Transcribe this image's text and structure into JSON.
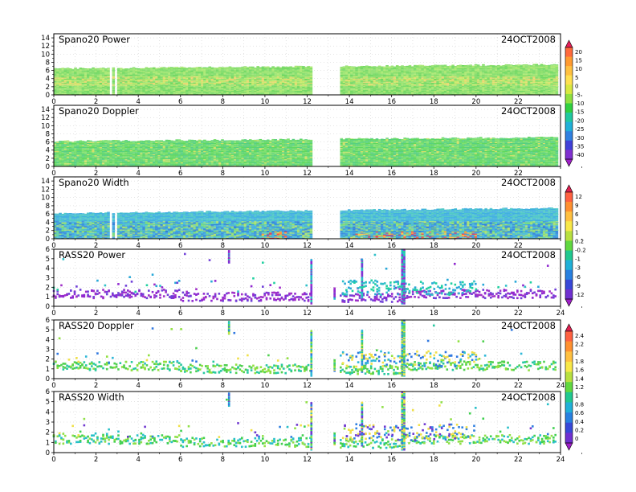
{
  "date_label": "24OCT2008",
  "x_ticks": [
    0,
    2,
    4,
    6,
    8,
    10,
    12,
    14,
    16,
    18,
    20,
    22,
    24
  ],
  "x_tick_labels": [
    "0",
    "2",
    "4",
    "6",
    "8",
    "10",
    "12",
    "14",
    "16",
    "18",
    "20",
    "22",
    "24"
  ],
  "colorbars": [
    {
      "ticks": [
        "20",
        "15",
        "10",
        "5",
        "0",
        "-5",
        "-10",
        "-15",
        "-20",
        "-25",
        "-30",
        "-35",
        "-40"
      ]
    },
    {
      "ticks": [
        "12",
        "9",
        "6",
        "3",
        "1",
        "0.2",
        "-0.2",
        "-1",
        "-3",
        "-6",
        "-9",
        "-12"
      ]
    },
    {
      "ticks": [
        "2.4",
        "2.2",
        "2",
        "1.8",
        "1.6",
        "1.4",
        "1.2",
        "1",
        "0.8",
        "0.6",
        "0.4",
        "0.2",
        "0"
      ]
    }
  ],
  "chart_data": [
    {
      "type": "heatmap",
      "title": "Spano20 Power",
      "xlim": [
        0,
        24
      ],
      "ylim": [
        0,
        15
      ],
      "y_tick_labels": [
        "0",
        "2",
        "4",
        "6",
        "8",
        "10",
        "12",
        "14"
      ],
      "y_ticks_minor": [
        1,
        3,
        5,
        7,
        9,
        11,
        13
      ],
      "gap": [
        12.2,
        13.5
      ],
      "top_left": 6.5,
      "top_right": 7.5,
      "colorbar": 0
    },
    {
      "type": "heatmap",
      "title": "Spano20 Doppler",
      "xlim": [
        0,
        24
      ],
      "ylim": [
        0,
        15
      ],
      "y_tick_labels": [
        "0",
        "2",
        "4",
        "6",
        "8",
        "10",
        "12",
        "14"
      ],
      "y_ticks_minor": [
        1,
        3,
        5,
        7,
        9,
        11,
        13
      ],
      "gap": [
        12.2,
        13.5
      ],
      "top_left": 6.2,
      "top_right": 7.2,
      "colorbar": 0
    },
    {
      "type": "heatmap",
      "title": "Spano20 Width",
      "xlim": [
        0,
        24
      ],
      "ylim": [
        0,
        15
      ],
      "y_tick_labels": [
        "0",
        "2",
        "4",
        "6",
        "8",
        "10",
        "12",
        "14"
      ],
      "y_ticks_minor": [
        1,
        3,
        5,
        7,
        9,
        11,
        13
      ],
      "gap": [
        12.2,
        13.5
      ],
      "top_left": 6.2,
      "top_right": 7.5,
      "colorbar": 1
    },
    {
      "type": "scatter",
      "title": "RASS20 Power",
      "xlim": [
        0,
        24
      ],
      "ylim": [
        0,
        6
      ],
      "y_tick_labels": [
        "0",
        "1",
        "2",
        "3",
        "4",
        "5",
        "6"
      ],
      "colorbar": 1
    },
    {
      "type": "scatter",
      "title": "RASS20 Doppler",
      "xlim": [
        0,
        24
      ],
      "ylim": [
        0,
        6
      ],
      "y_tick_labels": [
        "0",
        "1",
        "2",
        "3",
        "4",
        "5",
        "6"
      ],
      "colorbar": 2
    },
    {
      "type": "scatter",
      "title": "RASS20 Width",
      "xlim": [
        0,
        24
      ],
      "ylim": [
        0,
        6
      ],
      "y_tick_labels": [
        "0",
        "1",
        "2",
        "3",
        "4",
        "5",
        "6"
      ],
      "colorbar": 2
    }
  ]
}
